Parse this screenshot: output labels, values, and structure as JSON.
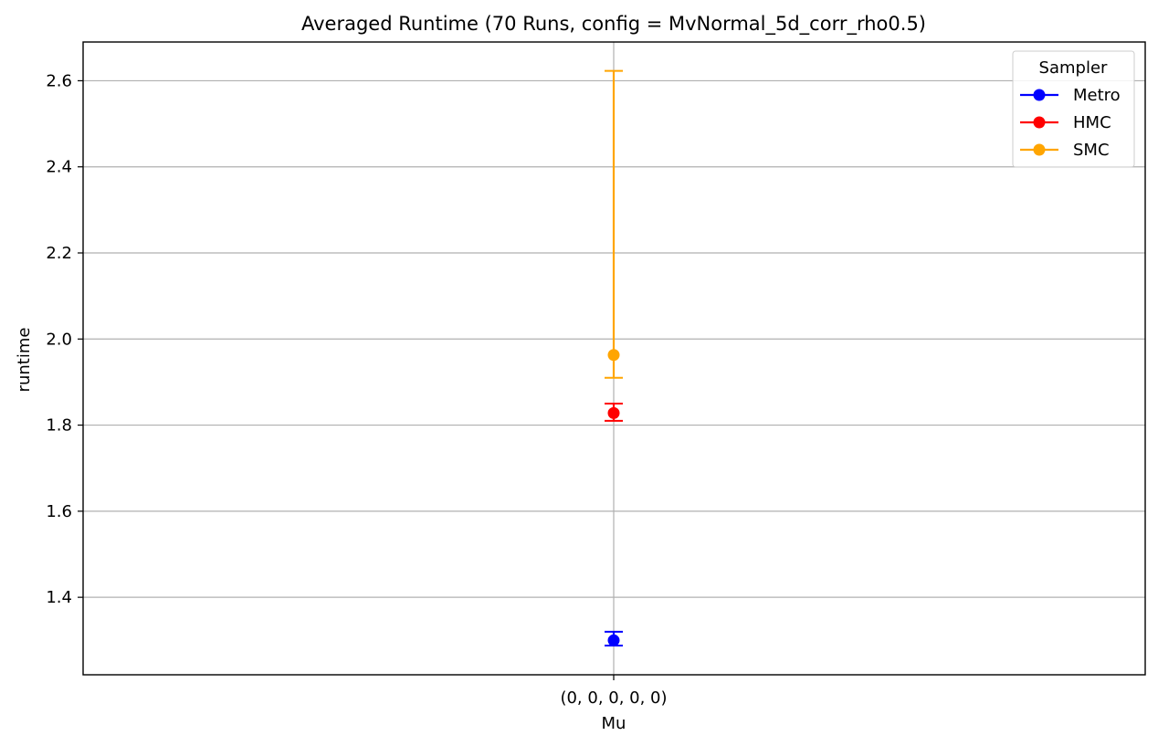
{
  "chart_data": {
    "type": "scatter",
    "title": "Averaged Runtime (70 Runs, config = MvNormal_5d_corr_rho0.5)",
    "xlabel": "Mu",
    "ylabel": "runtime",
    "categories": [
      "(0, 0, 0, 0, 0)"
    ],
    "ylim": [
      1.22,
      2.69
    ],
    "yticks": [
      1.4,
      1.6,
      1.8,
      2.0,
      2.2,
      2.4,
      2.6
    ],
    "ytick_labels": [
      "1.4",
      "1.6",
      "1.8",
      "2.0",
      "2.2",
      "2.4",
      "2.6"
    ],
    "grid": true,
    "legend": {
      "title": "Sampler",
      "placement": "top-right"
    },
    "series": [
      {
        "name": "Metro",
        "color": "#0000ff",
        "values": [
          1.3
        ],
        "err_low": [
          1.288
        ],
        "err_high": [
          1.32
        ]
      },
      {
        "name": "HMC",
        "color": "#ff0000",
        "values": [
          1.828
        ],
        "err_low": [
          1.81
        ],
        "err_high": [
          1.85
        ]
      },
      {
        "name": "SMC",
        "color": "#ffa500",
        "values": [
          1.963
        ],
        "err_low": [
          1.91
        ],
        "err_high": [
          2.623
        ]
      }
    ]
  }
}
